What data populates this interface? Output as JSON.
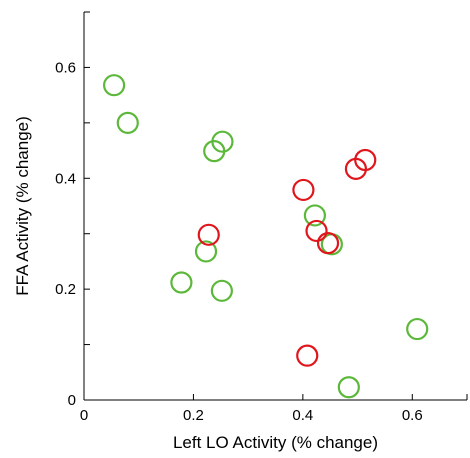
{
  "chart_data": {
    "type": "scatter",
    "title": "",
    "xlabel": "Left LO Activity (% change)",
    "ylabel": "FFA Activity (% change)",
    "xlim": [
      0,
      0.7
    ],
    "ylim": [
      0,
      0.7
    ],
    "xticks": [
      0,
      0.2,
      0.4,
      0.6
    ],
    "yticks": [
      0,
      0.2,
      0.4,
      0.6
    ],
    "xtick_labels": [
      "0",
      "0.2",
      "0.4",
      "0.6"
    ],
    "ytick_labels": [
      "0",
      "0.2",
      "0.4",
      "0.6"
    ],
    "grid": false,
    "marker": "open-circle",
    "series": [
      {
        "color": "#5cb83a",
        "points": [
          {
            "x": 0.055,
            "y": 0.568
          },
          {
            "x": 0.08,
            "y": 0.5
          },
          {
            "x": 0.253,
            "y": 0.466
          },
          {
            "x": 0.238,
            "y": 0.449
          },
          {
            "x": 0.422,
            "y": 0.333
          },
          {
            "x": 0.223,
            "y": 0.268
          },
          {
            "x": 0.453,
            "y": 0.281
          },
          {
            "x": 0.178,
            "y": 0.212
          },
          {
            "x": 0.252,
            "y": 0.197
          },
          {
            "x": 0.609,
            "y": 0.128
          },
          {
            "x": 0.484,
            "y": 0.023
          }
        ]
      },
      {
        "color": "#e0161d",
        "points": [
          {
            "x": 0.514,
            "y": 0.433
          },
          {
            "x": 0.497,
            "y": 0.417
          },
          {
            "x": 0.401,
            "y": 0.379
          },
          {
            "x": 0.228,
            "y": 0.298
          },
          {
            "x": 0.425,
            "y": 0.305
          },
          {
            "x": 0.446,
            "y": 0.283
          },
          {
            "x": 0.408,
            "y": 0.08
          }
        ]
      }
    ]
  }
}
